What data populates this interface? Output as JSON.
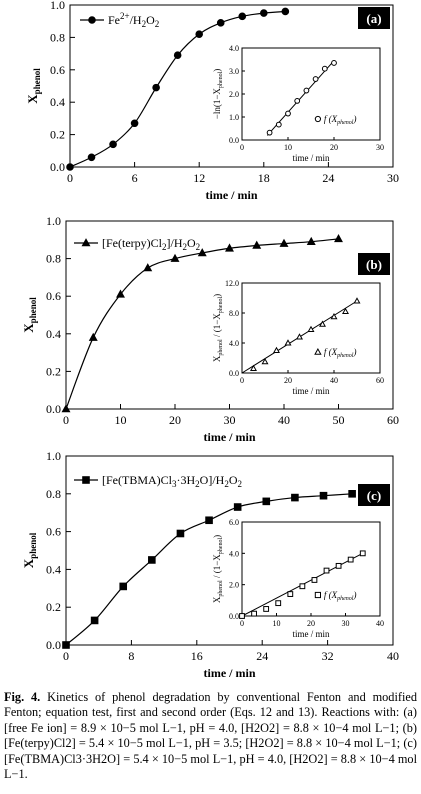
{
  "chart_data": [
    {
      "type": "line",
      "panel_label": "(a)",
      "xlabel": "time / min",
      "ylabel_main": "X",
      "ylabel_sub": "phenol",
      "xlim": [
        0,
        30
      ],
      "ylim": [
        0,
        1.0
      ],
      "xticks": [
        0,
        6,
        12,
        18,
        24,
        30
      ],
      "yticks": [
        0.0,
        0.2,
        0.4,
        0.6,
        0.8,
        1.0
      ],
      "marker": "circle",
      "series": [
        {
          "legend_prefix": "Fe",
          "legend_sup": "2+",
          "legend_suffix": "/H2O2",
          "x": [
            0,
            2,
            4,
            6,
            8,
            10,
            12,
            14,
            16,
            18,
            20
          ],
          "y": [
            0.0,
            0.06,
            0.14,
            0.27,
            0.49,
            0.69,
            0.82,
            0.89,
            0.93,
            0.95,
            0.96
          ]
        }
      ],
      "inset": {
        "ylabel": "−ln(1−Xphenol)",
        "xlabel": "time / min",
        "xlim": [
          0,
          30
        ],
        "ylim": [
          0,
          4.0
        ],
        "xticks": [
          0,
          10,
          20,
          30
        ],
        "yticks": [
          0.0,
          1.0,
          2.0,
          3.0,
          4.0
        ],
        "legend": "f (Xphenol)",
        "marker": "circle-open",
        "x": [
          6,
          8,
          10,
          12,
          14,
          16,
          18,
          20
        ],
        "y": [
          0.32,
          0.67,
          1.15,
          1.7,
          2.15,
          2.65,
          3.1,
          3.35
        ],
        "fit": [
          [
            5.5,
            0.2
          ],
          [
            20,
            3.45
          ]
        ]
      }
    },
    {
      "type": "line",
      "panel_label": "(b)",
      "xlabel": "time / min",
      "ylabel_main": "X",
      "ylabel_sub": "phenol",
      "xlim": [
        0,
        60
      ],
      "ylim": [
        0,
        1.0
      ],
      "xticks": [
        0,
        10,
        20,
        30,
        40,
        50,
        60
      ],
      "yticks": [
        0.0,
        0.2,
        0.4,
        0.6,
        0.8,
        1.0
      ],
      "marker": "triangle",
      "series": [
        {
          "legend_prefix": "[Fe(terpy)Cl2]",
          "legend_sup": "",
          "legend_suffix": "/H2O2",
          "x": [
            0,
            5,
            10,
            15,
            20,
            25,
            30,
            35,
            40,
            45,
            50
          ],
          "y": [
            0.0,
            0.38,
            0.61,
            0.75,
            0.8,
            0.83,
            0.855,
            0.87,
            0.88,
            0.89,
            0.905
          ]
        }
      ],
      "inset": {
        "ylabel": "Xphenol / (1−Xphenol)",
        "xlabel": "time / min",
        "xlim": [
          0,
          60
        ],
        "ylim": [
          0,
          12.0
        ],
        "xticks": [
          0,
          20,
          40,
          60
        ],
        "yticks": [
          0.0,
          4.0,
          8.0,
          12.0
        ],
        "legend": "f (Xphenol)",
        "marker": "triangle-open",
        "x": [
          5,
          10,
          15,
          20,
          25,
          30,
          35,
          40,
          45,
          50
        ],
        "y": [
          0.6,
          1.5,
          3.0,
          4.0,
          4.8,
          5.8,
          6.5,
          7.5,
          8.2,
          9.6
        ],
        "fit": [
          [
            0,
            0
          ],
          [
            50,
            9.6
          ]
        ]
      }
    },
    {
      "type": "line",
      "panel_label": "(c)",
      "xlabel": "time / min",
      "ylabel_main": "X",
      "ylabel_sub": "phenol",
      "xlim": [
        0,
        40
      ],
      "ylim": [
        0,
        1.0
      ],
      "xticks": [
        0,
        8,
        16,
        24,
        32,
        40
      ],
      "yticks": [
        0.0,
        0.2,
        0.4,
        0.6,
        0.8,
        1.0
      ],
      "marker": "square",
      "series": [
        {
          "legend_prefix": "[Fe(TBMA)Cl3·3H2O]",
          "legend_sup": "",
          "legend_suffix": "/H2O2",
          "x": [
            0,
            3.5,
            7,
            10.5,
            14,
            17.5,
            21,
            24.5,
            28,
            31.5,
            35
          ],
          "y": [
            0.0,
            0.13,
            0.31,
            0.45,
            0.59,
            0.66,
            0.73,
            0.76,
            0.78,
            0.79,
            0.8
          ]
        }
      ],
      "inset": {
        "ylabel": "Xphenol / (1−Xphenol)",
        "xlabel": "time / min",
        "xlim": [
          0,
          40
        ],
        "ylim": [
          0,
          6.0
        ],
        "xticks": [
          0,
          10,
          20,
          30,
          40
        ],
        "yticks": [
          0.0,
          2.0,
          4.0,
          6.0
        ],
        "legend": "f (Xphenol)",
        "marker": "square-open",
        "x": [
          0,
          3.5,
          7,
          10.5,
          14,
          17.5,
          21,
          24.5,
          28,
          31.5,
          35
        ],
        "y": [
          0.0,
          0.15,
          0.45,
          0.82,
          1.4,
          1.9,
          2.3,
          2.9,
          3.2,
          3.6,
          4.0
        ],
        "fit": [
          [
            0,
            0
          ],
          [
            35,
            4.0
          ]
        ]
      }
    }
  ],
  "caption": {
    "label": "Fig. 4.",
    "text": " Kinetics of phenol degradation by conventional Fenton and modified Fenton; equation test, first and second order (Eqs. 12 and 13). Reactions with: (a) [free Fe ion] = 8.9 × 10−5 mol L−1, pH = 4.0, [H2O2] = 8.8 × 10−4 mol L−1; (b) [Fe(terpy)Cl2] = 5.4 × 10−5 mol L−1, pH = 3.5; [H2O2] = 8.8 × 10−4 mol L−1; (c) [Fe(TBMA)Cl3·3H2O] = 5.4 × 10−5 mol L−1, pH = 4.0, [H2O2] = 8.8 × 10−4 mol L−1."
  }
}
